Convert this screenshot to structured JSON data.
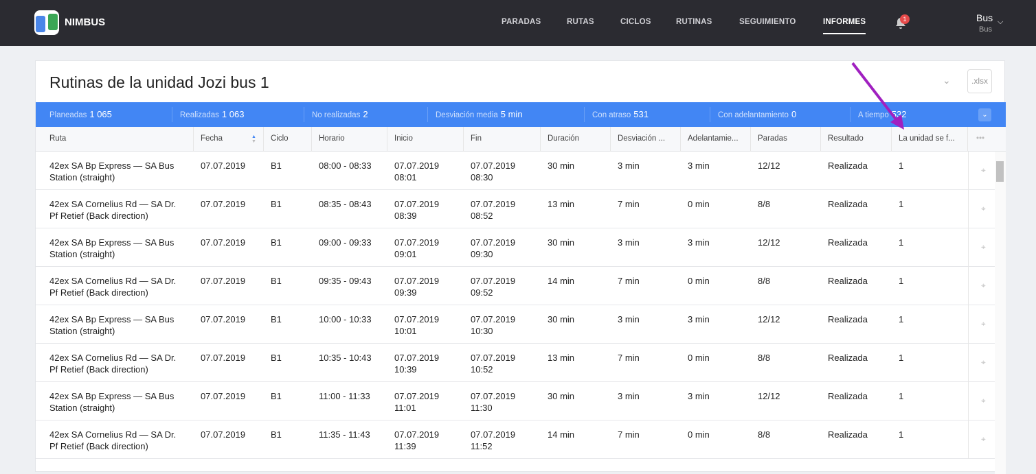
{
  "app": {
    "brand": "NIMBUS"
  },
  "nav": [
    {
      "label": "PARADAS"
    },
    {
      "label": "RUTAS"
    },
    {
      "label": "CICLOS"
    },
    {
      "label": "RUTINAS"
    },
    {
      "label": "SEGUIMIENTO"
    },
    {
      "label": "INFORMES",
      "active": true
    }
  ],
  "notifications": {
    "count": "1"
  },
  "user": {
    "name": "Bus",
    "role": "Bus"
  },
  "report": {
    "title": "Rutinas de la unidad Jozi bus 1",
    "export_label": ".xlsx"
  },
  "stats": [
    {
      "label": "Planeadas",
      "value": "1 065"
    },
    {
      "label": "Realizadas",
      "value": "1 063"
    },
    {
      "label": "No realizadas",
      "value": "2"
    },
    {
      "label": "Desviación media",
      "value": "5 min"
    },
    {
      "label": "Con atraso",
      "value": "531"
    },
    {
      "label": "Con adelantamiento",
      "value": "0"
    },
    {
      "label": "A tiempo",
      "value": "532"
    }
  ],
  "columns": [
    "Ruta",
    "Fecha",
    "Ciclo",
    "Horario",
    "Inicio",
    "Fin",
    "Duración",
    "Desviación ...",
    "Adelantamie...",
    "Paradas",
    "Resultado",
    "La unidad se f...",
    "•••"
  ],
  "rows": [
    [
      "42ex SA Bp Express — SA Bus Station (straight)",
      "07.07.2019",
      "B1",
      "08:00 - 08:33",
      "07.07.2019 08:01",
      "07.07.2019 08:30",
      "30 min",
      "3 min",
      "3 min",
      "12/12",
      "Realizada",
      "1"
    ],
    [
      "42ex SA Cornelius Rd — SA Dr. Pf Retief (Back direction)",
      "07.07.2019",
      "B1",
      "08:35 - 08:43",
      "07.07.2019 08:39",
      "07.07.2019 08:52",
      "13 min",
      "7 min",
      "0 min",
      "8/8",
      "Realizada",
      "1"
    ],
    [
      "42ex SA Bp Express — SA Bus Station (straight)",
      "07.07.2019",
      "B1",
      "09:00 - 09:33",
      "07.07.2019 09:01",
      "07.07.2019 09:30",
      "30 min",
      "3 min",
      "3 min",
      "12/12",
      "Realizada",
      "1"
    ],
    [
      "42ex SA Cornelius Rd — SA Dr. Pf Retief (Back direction)",
      "07.07.2019",
      "B1",
      "09:35 - 09:43",
      "07.07.2019 09:39",
      "07.07.2019 09:52",
      "14 min",
      "7 min",
      "0 min",
      "8/8",
      "Realizada",
      "1"
    ],
    [
      "42ex SA Bp Express — SA Bus Station (straight)",
      "07.07.2019",
      "B1",
      "10:00 - 10:33",
      "07.07.2019 10:01",
      "07.07.2019 10:30",
      "30 min",
      "3 min",
      "3 min",
      "12/12",
      "Realizada",
      "1"
    ],
    [
      "42ex SA Cornelius Rd — SA Dr. Pf Retief (Back direction)",
      "07.07.2019",
      "B1",
      "10:35 - 10:43",
      "07.07.2019 10:39",
      "07.07.2019 10:52",
      "13 min",
      "7 min",
      "0 min",
      "8/8",
      "Realizada",
      "1"
    ],
    [
      "42ex SA Bp Express — SA Bus Station (straight)",
      "07.07.2019",
      "B1",
      "11:00 - 11:33",
      "07.07.2019 11:01",
      "07.07.2019 11:30",
      "30 min",
      "3 min",
      "3 min",
      "12/12",
      "Realizada",
      "1"
    ],
    [
      "42ex SA Cornelius Rd — SA Dr. Pf Retief (Back direction)",
      "07.07.2019",
      "B1",
      "11:35 - 11:43",
      "07.07.2019 11:39",
      "07.07.2019 11:52",
      "14 min",
      "7 min",
      "0 min",
      "8/8",
      "Realizada",
      "1"
    ]
  ],
  "colors": {
    "topbar": "#2b2b31",
    "accent": "#4286f4",
    "annotation_arrow": "#a020c0",
    "badge": "#e64a4a"
  }
}
